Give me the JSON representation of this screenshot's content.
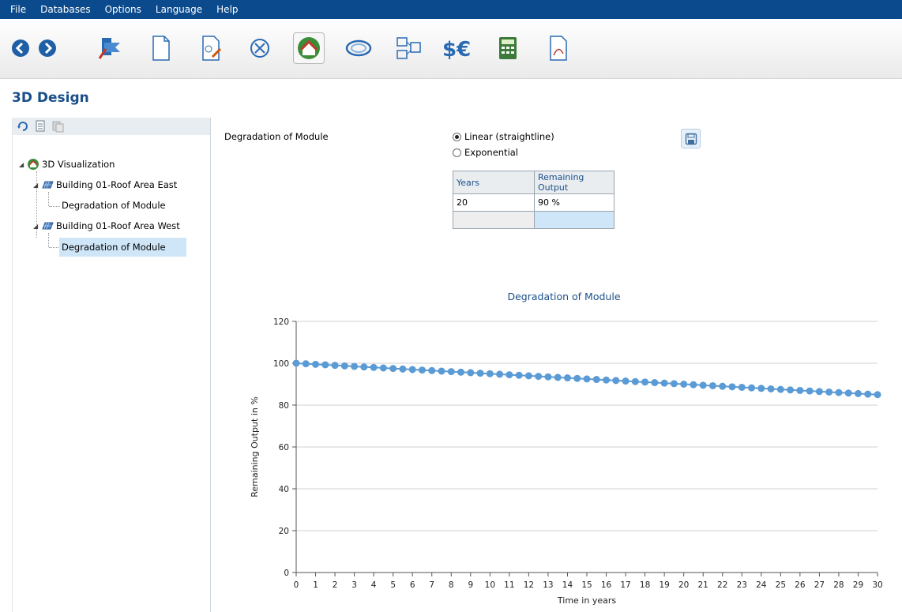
{
  "menu": [
    "File",
    "Databases",
    "Options",
    "Language",
    "Help"
  ],
  "toolbar": {
    "buttons": [
      "back-icon",
      "forward-icon",
      "project-data-icon",
      "new-document-icon",
      "import-icon",
      "cancel-icon",
      "3d-design-icon",
      "shading-icon",
      "layout-icon",
      "financial-analysis-icon",
      "calculator-icon",
      "report-icon"
    ],
    "active": "3d-design-icon"
  },
  "page": {
    "title": "3D Design"
  },
  "tree": {
    "root": "3D Visualization",
    "buildings": [
      {
        "label": "Building 01-Roof Area East",
        "child": "Degradation of Module"
      },
      {
        "label": "Building 01-Roof Area West",
        "child": "Degradation of Module"
      }
    ]
  },
  "form": {
    "param_label": "Degradation of Module",
    "options": [
      {
        "label": "Linear (straightline)",
        "selected": true
      },
      {
        "label": "Exponential",
        "selected": false
      }
    ],
    "table_headers": [
      "Years",
      "Remaining Output"
    ],
    "table_rows": [
      {
        "years": "20",
        "output": "90 %"
      }
    ]
  },
  "chart_data": {
    "type": "line",
    "title": "Degradation of Module",
    "xlabel": "Time in years",
    "ylabel": "Remaining Output in %",
    "xlim": [
      0,
      30
    ],
    "ylim": [
      0,
      120
    ],
    "yticks": [
      0,
      20,
      40,
      60,
      80,
      100,
      120
    ],
    "xticks": [
      0,
      1,
      2,
      3,
      4,
      5,
      6,
      7,
      8,
      9,
      10,
      11,
      12,
      13,
      14,
      15,
      16,
      17,
      18,
      19,
      20,
      21,
      22,
      23,
      24,
      25,
      26,
      27,
      28,
      29,
      30
    ],
    "series": [
      {
        "x": [
          0,
          0.5,
          1,
          1.5,
          2,
          2.5,
          3,
          3.5,
          4,
          4.5,
          5,
          5.5,
          6,
          6.5,
          7,
          7.5,
          8,
          8.5,
          9,
          9.5,
          10,
          10.5,
          11,
          11.5,
          12,
          12.5,
          13,
          13.5,
          14,
          14.5,
          15,
          15.5,
          16,
          16.5,
          17,
          17.5,
          18,
          18.5,
          19,
          19.5,
          20,
          20.5,
          21,
          21.5,
          22,
          22.5,
          23,
          23.5,
          24,
          24.5,
          25,
          25.5,
          26,
          26.5,
          27,
          27.5,
          28,
          28.5,
          29,
          29.5,
          30
        ],
        "values": [
          100,
          99.75,
          99.5,
          99.25,
          99,
          98.75,
          98.5,
          98.25,
          98,
          97.75,
          97.5,
          97.25,
          97,
          96.75,
          96.5,
          96.25,
          96,
          95.75,
          95.5,
          95.25,
          95,
          94.75,
          94.5,
          94.25,
          94,
          93.75,
          93.5,
          93.25,
          93,
          92.75,
          92.5,
          92.25,
          92,
          91.75,
          91.5,
          91.25,
          91,
          90.75,
          90.5,
          90.25,
          90,
          89.75,
          89.5,
          89.25,
          89,
          88.75,
          88.5,
          88.25,
          88,
          87.75,
          87.5,
          87.25,
          87,
          86.75,
          86.5,
          86.25,
          86,
          85.75,
          85.5,
          85.25,
          85
        ],
        "color": "#5b9bd5"
      }
    ],
    "grid": true
  }
}
